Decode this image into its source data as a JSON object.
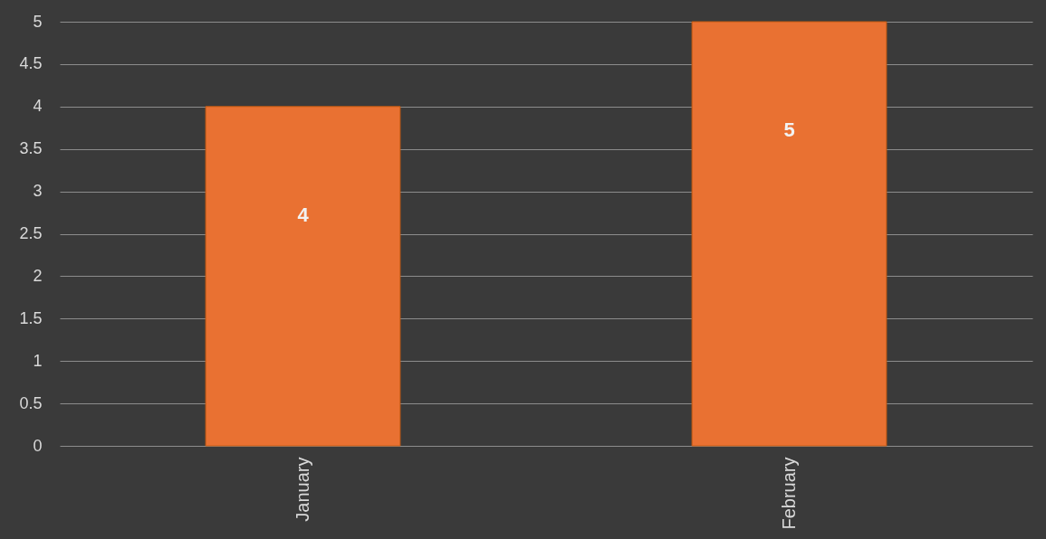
{
  "chart_data": {
    "type": "bar",
    "categories": [
      "January",
      "February"
    ],
    "values": [
      4,
      5
    ],
    "color": "#e97132",
    "ylim": [
      0,
      5
    ],
    "yticks": [
      0,
      0.5,
      1,
      1.5,
      2,
      2.5,
      3,
      3.5,
      4,
      4.5,
      5
    ],
    "grid": "y",
    "data_labels": true
  }
}
